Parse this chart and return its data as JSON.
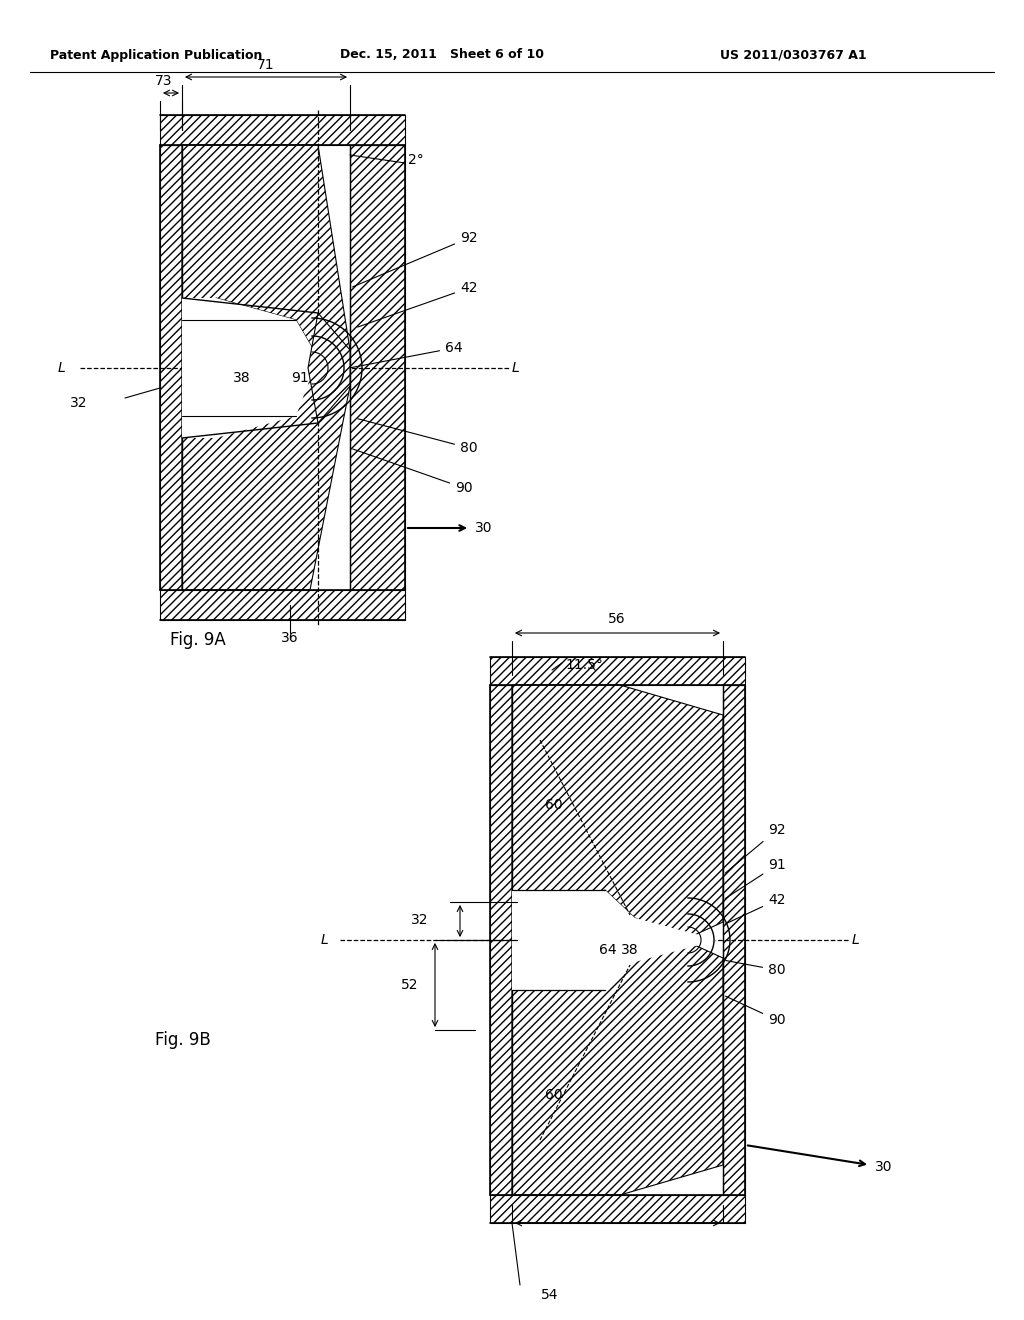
{
  "title_left": "Patent Application Publication",
  "title_mid": "Dec. 15, 2011   Sheet 6 of 10",
  "title_right": "US 2011/0303767 A1",
  "fig9a_label": "Fig. 9A",
  "fig9b_label": "Fig. 9B",
  "bg_color": "#ffffff",
  "line_color": "#000000",
  "font_size_header": 9,
  "font_size_label": 10,
  "font_size_ref": 10
}
